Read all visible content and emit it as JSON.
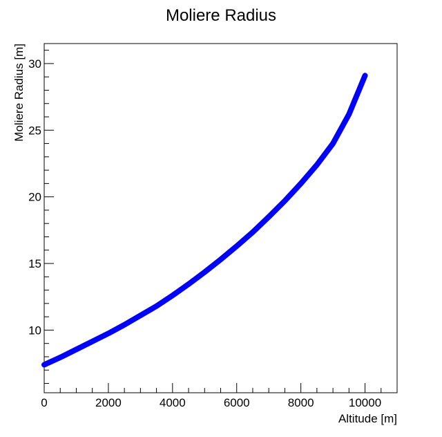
{
  "chart_data": {
    "type": "line",
    "title": "Moliere Radius",
    "xlabel": "Altitude [m]",
    "ylabel": "Moliere Radius [m]",
    "xlim": [
      0,
      11000
    ],
    "ylim": [
      5.3,
      31.5
    ],
    "x_ticks": [
      0,
      2000,
      4000,
      6000,
      8000,
      10000
    ],
    "x_tick_labels": [
      "0",
      "2000",
      "4000",
      "6000",
      "8000",
      "10000"
    ],
    "y_ticks": [
      10,
      15,
      20,
      25,
      30
    ],
    "y_tick_labels": [
      "10",
      "15",
      "20",
      "25",
      "30"
    ],
    "grid": false,
    "legend": "none",
    "series": [
      {
        "color": "#0000ff",
        "x": [
          0,
          500,
          1000,
          1500,
          2000,
          2500,
          3000,
          3500,
          4000,
          4500,
          5000,
          5500,
          6000,
          6500,
          7000,
          7500,
          8000,
          8500,
          9000,
          9500,
          10000
        ],
        "y": [
          7.4,
          7.95,
          8.55,
          9.15,
          9.75,
          10.4,
          11.1,
          11.8,
          12.6,
          13.45,
          14.35,
          15.3,
          16.3,
          17.35,
          18.5,
          19.7,
          21.0,
          22.4,
          24.0,
          26.2,
          29.1
        ]
      }
    ]
  }
}
